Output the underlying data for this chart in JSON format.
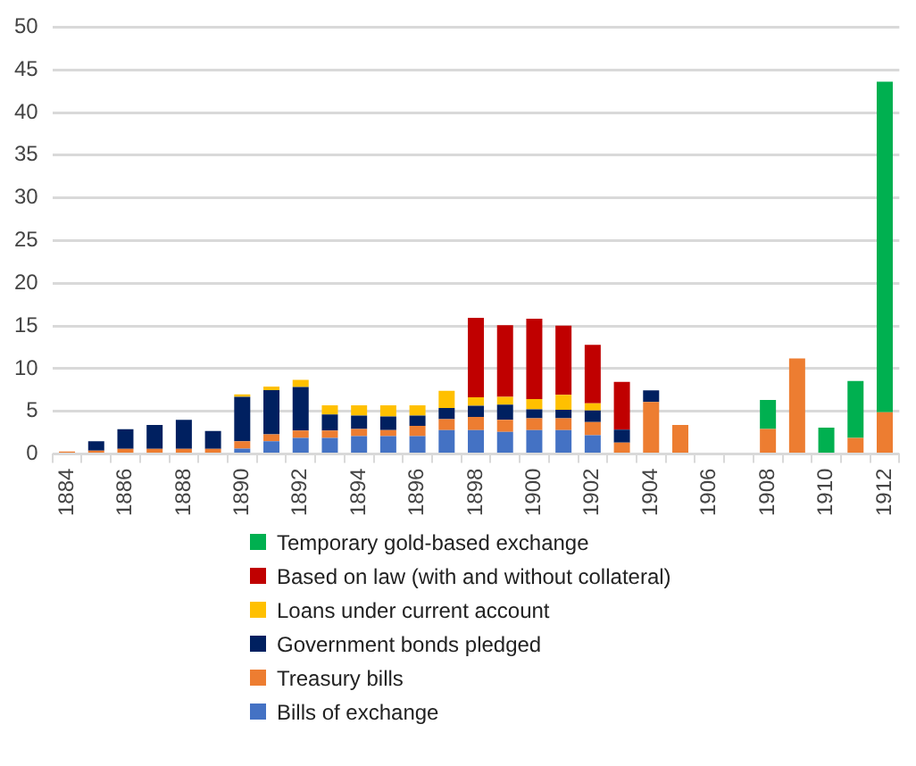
{
  "chart_data": {
    "type": "bar",
    "stacked": true,
    "grid": "y",
    "legend": "bottom",
    "categories": [
      "1884",
      null,
      "1886",
      null,
      "1888",
      null,
      "1890",
      null,
      "1892",
      null,
      "1894",
      null,
      "1896",
      null,
      "1898",
      null,
      "1900",
      null,
      "1902",
      null,
      "1904",
      null,
      "1906",
      null,
      "1908",
      null,
      "1910",
      null,
      "1912"
    ],
    "ylim": [
      0,
      50
    ],
    "yticks": [
      0,
      5,
      10,
      15,
      20,
      25,
      30,
      35,
      40,
      45,
      50
    ],
    "series": [
      {
        "name": "Bills of exchange",
        "color": "#4472c4",
        "values": [
          0,
          0,
          0,
          0,
          0,
          0,
          0.65,
          1.5,
          1.9,
          1.9,
          2.1,
          2.1,
          2.1,
          2.8,
          2.8,
          2.6,
          2.8,
          2.8,
          2.2,
          0,
          0,
          0,
          0,
          0,
          0,
          0,
          0,
          0,
          0
        ]
      },
      {
        "name": "Treasury bills",
        "color": "#ed7d31",
        "values": [
          0.3,
          0.4,
          0.6,
          0.6,
          0.6,
          0.6,
          0.85,
          0.8,
          0.85,
          0.85,
          0.85,
          0.7,
          1.2,
          1.3,
          1.55,
          1.4,
          1.4,
          1.4,
          1.55,
          1.35,
          6.1,
          3.4,
          0,
          0,
          2.95,
          11.2,
          0,
          1.9,
          4.9
        ]
      },
      {
        "name": "Government bonds pledged",
        "color": "#002060",
        "values": [
          0,
          1.1,
          2.3,
          2.8,
          3.4,
          2.1,
          5.2,
          5.2,
          5.1,
          1.9,
          1.55,
          1.6,
          1.2,
          1.3,
          1.3,
          1.8,
          1.05,
          1.0,
          1.35,
          1.5,
          1.35,
          0,
          0,
          0,
          0,
          0,
          0,
          0,
          0
        ]
      },
      {
        "name": "Loans under current account",
        "color": "#ffc000",
        "values": [
          0,
          0,
          0,
          0,
          0,
          0,
          0.3,
          0.4,
          0.85,
          1.05,
          1.2,
          1.3,
          1.2,
          2.0,
          1.0,
          0.9,
          1.2,
          1.75,
          0.85,
          0,
          0,
          0,
          0,
          0,
          0,
          0,
          0,
          0,
          0
        ]
      },
      {
        "name": "Based on law (with and without collateral)",
        "color": "#c00000",
        "values": [
          0,
          0,
          0,
          0,
          0,
          0,
          0,
          0,
          0,
          0,
          0,
          0,
          0,
          0,
          9.3,
          8.4,
          9.4,
          8.1,
          6.85,
          5.6,
          0,
          0,
          0,
          0,
          0,
          0,
          0,
          0,
          0
        ]
      },
      {
        "name": "Temporary gold-based exchange",
        "color": "#00b050",
        "values": [
          0,
          0,
          0,
          0,
          0,
          0,
          0,
          0,
          0,
          0,
          0,
          0,
          0,
          0,
          0,
          0,
          0,
          0,
          0,
          0,
          0,
          0,
          0,
          0,
          3.4,
          0,
          3.1,
          6.65,
          38.7
        ]
      }
    ]
  }
}
